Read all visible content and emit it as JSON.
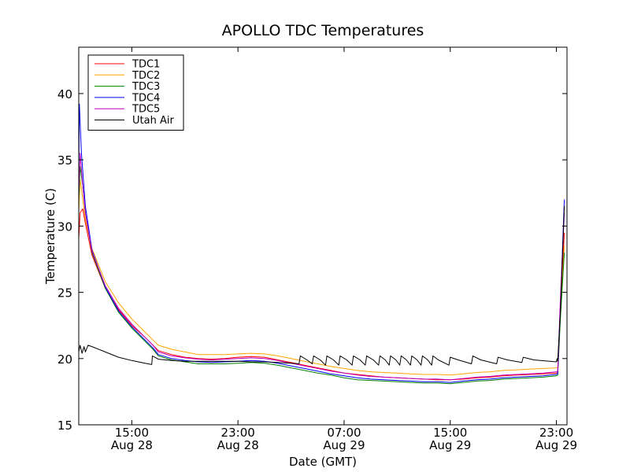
{
  "chart_data": {
    "type": "line",
    "title": "APOLLO TDC Temperatures",
    "xlabel": "Date (GMT)",
    "ylabel": "Temperature (C)",
    "xlim": [
      11.0,
      47.8
    ],
    "ylim": [
      15,
      43.5
    ],
    "x_unit": "hours since Aug 28 00:00 GMT",
    "grid": false,
    "legend_position": "top-left",
    "x_ticks": [
      {
        "x": 15,
        "line1": "15:00",
        "line2": "Aug 28"
      },
      {
        "x": 23,
        "line1": "23:00",
        "line2": "Aug 28"
      },
      {
        "x": 31,
        "line1": "07:00",
        "line2": "Aug 29"
      },
      {
        "x": 39,
        "line1": "15:00",
        "line2": "Aug 29"
      },
      {
        "x": 47,
        "line1": "23:00",
        "line2": "Aug 29"
      }
    ],
    "y_ticks": [
      15,
      20,
      25,
      30,
      35,
      40
    ],
    "series": [
      {
        "name": "TDC1",
        "color": "#ff0000",
        "points": [
          [
            11.0,
            29.0
          ],
          [
            11.1,
            31.0
          ],
          [
            11.3,
            31.3
          ],
          [
            11.5,
            30.2
          ],
          [
            12,
            27.8
          ],
          [
            13,
            25.3
          ],
          [
            14,
            23.7
          ],
          [
            15,
            22.5
          ],
          [
            16,
            21.6
          ],
          [
            16.6,
            21.0
          ],
          [
            17,
            20.6
          ],
          [
            18,
            20.3
          ],
          [
            19,
            20.1
          ],
          [
            20,
            20.0
          ],
          [
            21,
            19.95
          ],
          [
            22,
            20.0
          ],
          [
            23,
            20.1
          ],
          [
            24,
            20.15
          ],
          [
            25,
            20.1
          ],
          [
            26,
            19.9
          ],
          [
            27,
            19.7
          ],
          [
            28,
            19.5
          ],
          [
            29,
            19.3
          ],
          [
            30,
            19.1
          ],
          [
            31,
            18.9
          ],
          [
            32,
            18.8
          ],
          [
            33,
            18.7
          ],
          [
            34,
            18.6
          ],
          [
            35,
            18.55
          ],
          [
            36,
            18.5
          ],
          [
            37,
            18.45
          ],
          [
            38,
            18.4
          ],
          [
            39,
            18.4
          ],
          [
            40,
            18.45
          ],
          [
            41,
            18.55
          ],
          [
            42,
            18.6
          ],
          [
            43,
            18.7
          ],
          [
            44,
            18.75
          ],
          [
            45,
            18.8
          ],
          [
            46,
            18.85
          ],
          [
            47,
            18.9
          ],
          [
            47.1,
            18.95
          ],
          [
            47.3,
            23.5
          ],
          [
            47.6,
            29.5
          ]
        ]
      },
      {
        "name": "TDC2",
        "color": "#ffa500",
        "points": [
          [
            11.0,
            31.0
          ],
          [
            11.1,
            33.5
          ],
          [
            11.3,
            32.0
          ],
          [
            11.5,
            30.5
          ],
          [
            12,
            28.3
          ],
          [
            13,
            25.8
          ],
          [
            14,
            24.2
          ],
          [
            15,
            23.0
          ],
          [
            16,
            22.0
          ],
          [
            16.6,
            21.4
          ],
          [
            17,
            21.0
          ],
          [
            18,
            20.7
          ],
          [
            19,
            20.5
          ],
          [
            20,
            20.3
          ],
          [
            21,
            20.3
          ],
          [
            22,
            20.3
          ],
          [
            23,
            20.35
          ],
          [
            24,
            20.4
          ],
          [
            25,
            20.35
          ],
          [
            26,
            20.2
          ],
          [
            27,
            20.0
          ],
          [
            28,
            19.8
          ],
          [
            29,
            19.6
          ],
          [
            30,
            19.4
          ],
          [
            31,
            19.25
          ],
          [
            32,
            19.1
          ],
          [
            33,
            19.0
          ],
          [
            34,
            18.95
          ],
          [
            35,
            18.9
          ],
          [
            36,
            18.85
          ],
          [
            37,
            18.8
          ],
          [
            38,
            18.8
          ],
          [
            39,
            18.75
          ],
          [
            40,
            18.85
          ],
          [
            41,
            18.95
          ],
          [
            42,
            19.0
          ],
          [
            43,
            19.1
          ],
          [
            44,
            19.15
          ],
          [
            45,
            19.2
          ],
          [
            46,
            19.25
          ],
          [
            47,
            19.3
          ],
          [
            47.1,
            19.35
          ],
          [
            47.3,
            23.5
          ],
          [
            47.6,
            28.5
          ]
        ]
      },
      {
        "name": "TDC3",
        "color": "#008000",
        "points": [
          [
            11.0,
            32.0
          ],
          [
            11.1,
            34.5
          ],
          [
            11.3,
            33.0
          ],
          [
            11.5,
            31.0
          ],
          [
            12,
            28.0
          ],
          [
            13,
            25.3
          ],
          [
            14,
            23.5
          ],
          [
            15,
            22.3
          ],
          [
            16,
            21.3
          ],
          [
            16.6,
            20.7
          ],
          [
            17,
            20.2
          ],
          [
            18,
            19.9
          ],
          [
            19,
            19.75
          ],
          [
            20,
            19.6
          ],
          [
            21,
            19.6
          ],
          [
            22,
            19.6
          ],
          [
            23,
            19.65
          ],
          [
            24,
            19.7
          ],
          [
            25,
            19.65
          ],
          [
            26,
            19.5
          ],
          [
            27,
            19.3
          ],
          [
            28,
            19.1
          ],
          [
            29,
            18.9
          ],
          [
            30,
            18.75
          ],
          [
            31,
            18.55
          ],
          [
            32,
            18.4
          ],
          [
            33,
            18.35
          ],
          [
            34,
            18.3
          ],
          [
            35,
            18.25
          ],
          [
            36,
            18.2
          ],
          [
            37,
            18.15
          ],
          [
            38,
            18.15
          ],
          [
            39,
            18.1
          ],
          [
            40,
            18.2
          ],
          [
            41,
            18.3
          ],
          [
            42,
            18.35
          ],
          [
            43,
            18.45
          ],
          [
            44,
            18.5
          ],
          [
            45,
            18.55
          ],
          [
            46,
            18.6
          ],
          [
            47,
            18.7
          ],
          [
            47.1,
            18.75
          ],
          [
            47.3,
            23.0
          ],
          [
            47.6,
            28.0
          ]
        ]
      },
      {
        "name": "TDC4",
        "color": "#0000ff",
        "points": [
          [
            11.0,
            34.0
          ],
          [
            11.05,
            39.2
          ],
          [
            11.2,
            35.5
          ],
          [
            11.5,
            31.5
          ],
          [
            12,
            28.2
          ],
          [
            13,
            25.4
          ],
          [
            14,
            23.6
          ],
          [
            15,
            22.4
          ],
          [
            16,
            21.4
          ],
          [
            16.6,
            20.8
          ],
          [
            17,
            20.3
          ],
          [
            18,
            20.0
          ],
          [
            19,
            19.85
          ],
          [
            20,
            19.75
          ],
          [
            21,
            19.7
          ],
          [
            22,
            19.75
          ],
          [
            23,
            19.8
          ],
          [
            24,
            19.85
          ],
          [
            25,
            19.8
          ],
          [
            26,
            19.65
          ],
          [
            27,
            19.45
          ],
          [
            28,
            19.25
          ],
          [
            29,
            19.05
          ],
          [
            30,
            18.85
          ],
          [
            31,
            18.7
          ],
          [
            32,
            18.55
          ],
          [
            33,
            18.45
          ],
          [
            34,
            18.4
          ],
          [
            35,
            18.35
          ],
          [
            36,
            18.3
          ],
          [
            37,
            18.25
          ],
          [
            38,
            18.25
          ],
          [
            39,
            18.2
          ],
          [
            40,
            18.3
          ],
          [
            41,
            18.4
          ],
          [
            42,
            18.45
          ],
          [
            43,
            18.55
          ],
          [
            44,
            18.6
          ],
          [
            45,
            18.65
          ],
          [
            46,
            18.7
          ],
          [
            47,
            18.8
          ],
          [
            47.1,
            18.85
          ],
          [
            47.3,
            24.0
          ],
          [
            47.6,
            32.0
          ]
        ]
      },
      {
        "name": "TDC5",
        "color": "#bf00bf",
        "points": [
          [
            11.0,
            32.5
          ],
          [
            11.1,
            35.5
          ],
          [
            11.3,
            33.0
          ],
          [
            11.5,
            31.0
          ],
          [
            12,
            28.1
          ],
          [
            13,
            25.5
          ],
          [
            14,
            23.8
          ],
          [
            15,
            22.6
          ],
          [
            16,
            21.6
          ],
          [
            16.6,
            21.0
          ],
          [
            17,
            20.5
          ],
          [
            18,
            20.2
          ],
          [
            19,
            20.05
          ],
          [
            20,
            19.95
          ],
          [
            21,
            19.9
          ],
          [
            22,
            19.95
          ],
          [
            23,
            20.0
          ],
          [
            24,
            20.05
          ],
          [
            25,
            20.0
          ],
          [
            26,
            19.85
          ],
          [
            27,
            19.65
          ],
          [
            28,
            19.45
          ],
          [
            29,
            19.25
          ],
          [
            30,
            19.05
          ],
          [
            31,
            18.9
          ],
          [
            32,
            18.75
          ],
          [
            33,
            18.65
          ],
          [
            34,
            18.6
          ],
          [
            35,
            18.55
          ],
          [
            36,
            18.5
          ],
          [
            37,
            18.45
          ],
          [
            38,
            18.45
          ],
          [
            39,
            18.4
          ],
          [
            40,
            18.5
          ],
          [
            41,
            18.6
          ],
          [
            42,
            18.65
          ],
          [
            43,
            18.75
          ],
          [
            44,
            18.8
          ],
          [
            45,
            18.85
          ],
          [
            46,
            18.9
          ],
          [
            47,
            19.0
          ],
          [
            47.1,
            19.05
          ],
          [
            47.3,
            24.5
          ],
          [
            47.6,
            31.0
          ]
        ]
      },
      {
        "name": "Utah Air",
        "color": "#000000",
        "points": [
          [
            11.0,
            20.5
          ],
          [
            11.1,
            21.0
          ],
          [
            11.25,
            20.4
          ],
          [
            11.4,
            20.9
          ],
          [
            11.5,
            20.5
          ],
          [
            11.7,
            21.0
          ],
          [
            12,
            20.9
          ],
          [
            13,
            20.5
          ],
          [
            14,
            20.1
          ],
          [
            15,
            19.85
          ],
          [
            16,
            19.65
          ],
          [
            16.5,
            19.55
          ],
          [
            16.55,
            20.2
          ],
          [
            17,
            19.95
          ],
          [
            18,
            19.85
          ],
          [
            19,
            19.8
          ],
          [
            20,
            19.8
          ],
          [
            21,
            19.8
          ],
          [
            22,
            19.8
          ],
          [
            23,
            19.8
          ],
          [
            24,
            19.75
          ],
          [
            25,
            19.75
          ],
          [
            26,
            19.7
          ],
          [
            27,
            19.65
          ],
          [
            27.6,
            19.6
          ],
          [
            27.7,
            20.2
          ],
          [
            28.2,
            19.9
          ],
          [
            28.6,
            19.6
          ],
          [
            28.7,
            20.2
          ],
          [
            29.2,
            19.9
          ],
          [
            29.6,
            19.5
          ],
          [
            29.7,
            20.2
          ],
          [
            30.2,
            19.9
          ],
          [
            30.6,
            19.5
          ],
          [
            30.7,
            20.2
          ],
          [
            31.2,
            19.9
          ],
          [
            31.6,
            19.5
          ],
          [
            31.7,
            20.2
          ],
          [
            32.2,
            19.9
          ],
          [
            32.6,
            19.5
          ],
          [
            32.7,
            20.2
          ],
          [
            33.2,
            19.9
          ],
          [
            33.6,
            19.5
          ],
          [
            33.7,
            20.2
          ],
          [
            34.1,
            19.9
          ],
          [
            34.4,
            19.5
          ],
          [
            34.5,
            20.2
          ],
          [
            34.9,
            19.9
          ],
          [
            35.2,
            19.5
          ],
          [
            35.3,
            20.2
          ],
          [
            35.7,
            19.9
          ],
          [
            36.0,
            19.5
          ],
          [
            36.1,
            20.2
          ],
          [
            36.5,
            19.9
          ],
          [
            36.8,
            19.5
          ],
          [
            36.9,
            20.2
          ],
          [
            37.3,
            19.9
          ],
          [
            37.6,
            19.5
          ],
          [
            37.7,
            20.2
          ],
          [
            38.1,
            19.9
          ],
          [
            38.9,
            19.5
          ],
          [
            39.0,
            20.1
          ],
          [
            39.6,
            19.9
          ],
          [
            40.6,
            19.6
          ],
          [
            40.7,
            20.2
          ],
          [
            41.3,
            19.9
          ],
          [
            42.5,
            19.6
          ],
          [
            42.6,
            20.1
          ],
          [
            43.3,
            19.9
          ],
          [
            44.4,
            19.7
          ],
          [
            44.5,
            20.1
          ],
          [
            45.3,
            19.9
          ],
          [
            47.0,
            19.75
          ],
          [
            47.05,
            20.0
          ],
          [
            47.1,
            19.8
          ],
          [
            47.3,
            23.5
          ],
          [
            47.6,
            31.5
          ]
        ]
      }
    ]
  }
}
